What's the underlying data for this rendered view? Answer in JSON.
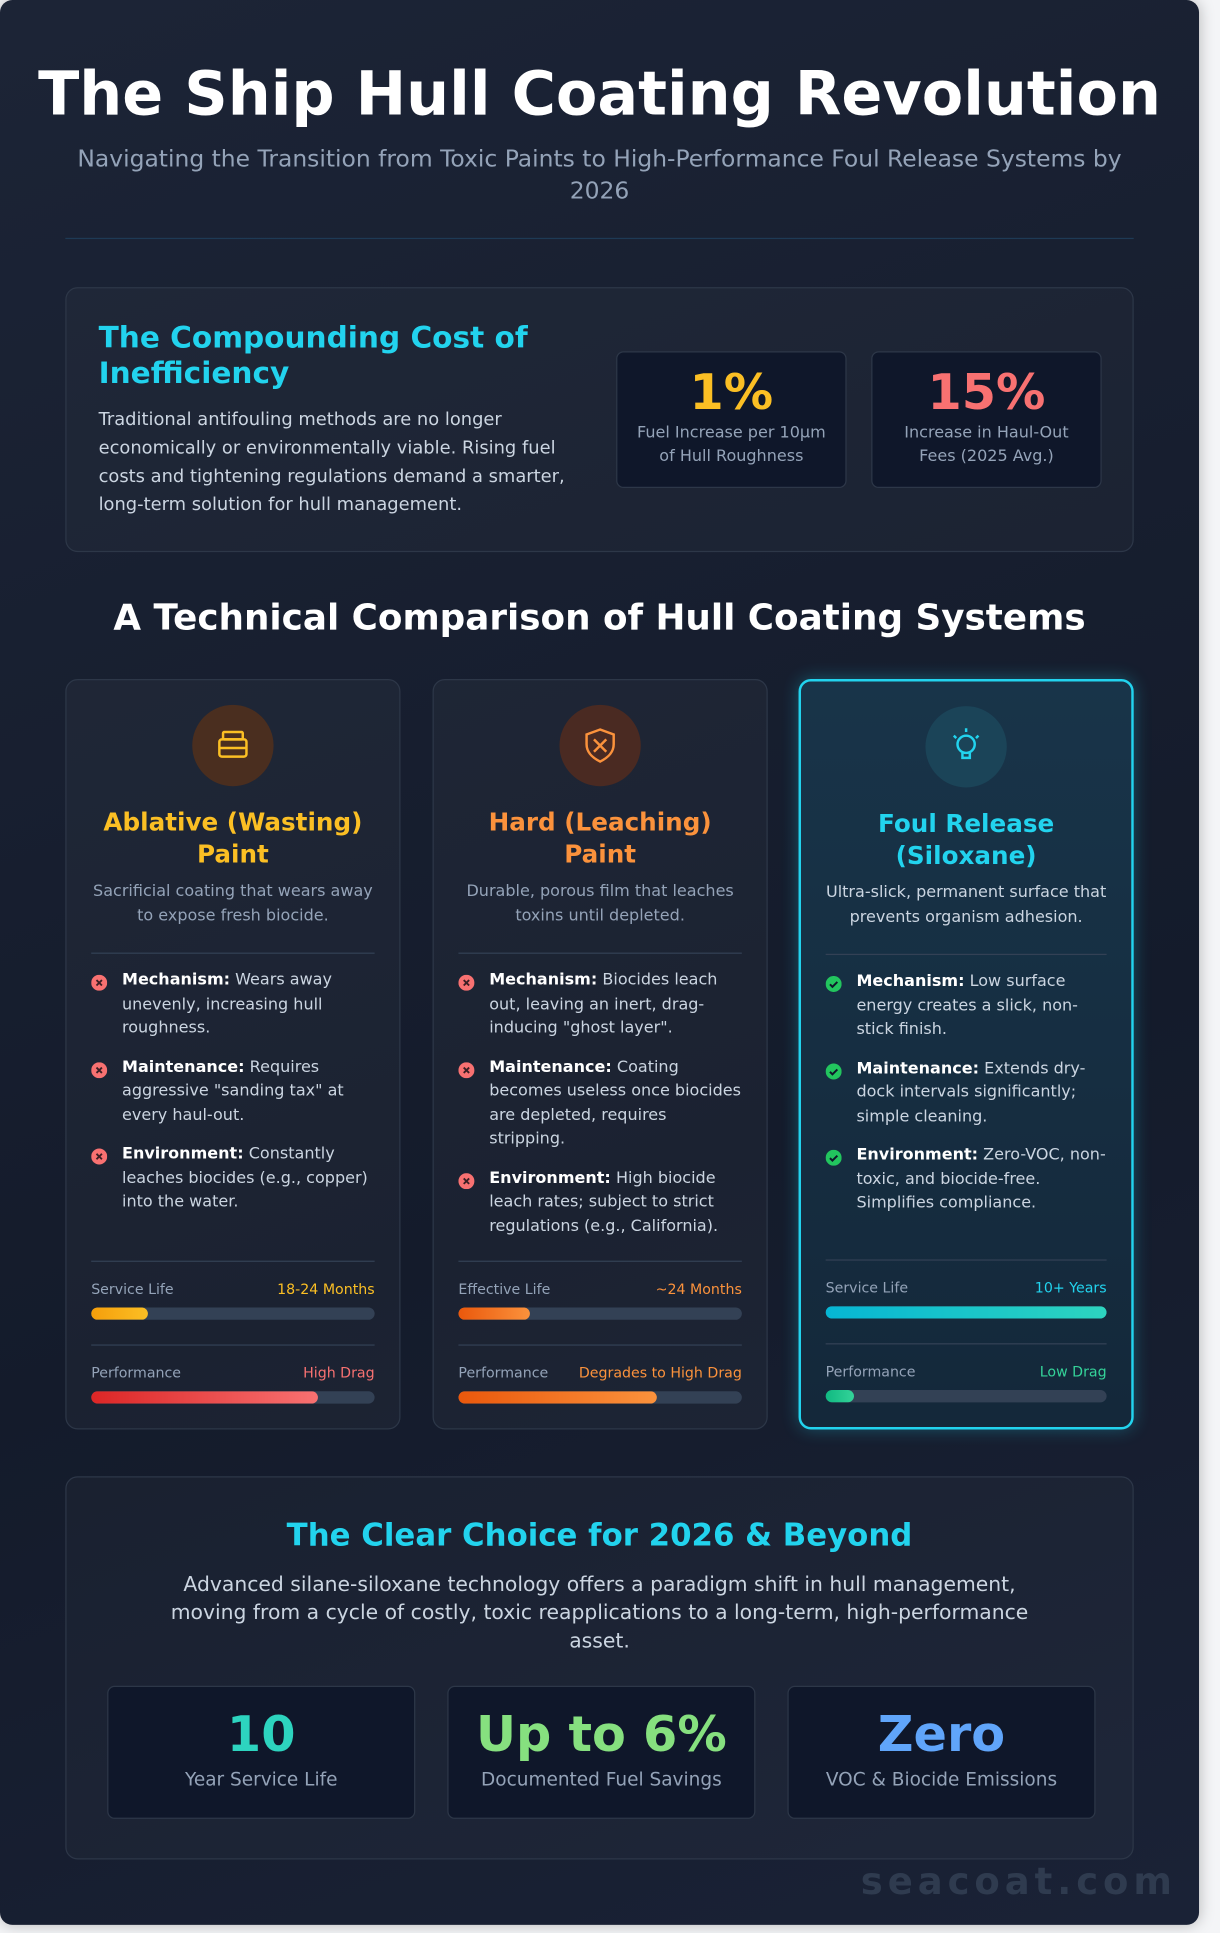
{
  "header": {
    "title": "The Ship Hull Coating Revolution",
    "subtitle": "Navigating the Transition from Toxic Paints to High-Performance Foul Release Systems by 2026"
  },
  "cost": {
    "title": "The Compounding Cost of Inefficiency",
    "body": "Traditional antifouling methods are no longer economically or environmentally viable. Rising fuel costs and tightening regulations demand a smarter, long-term solution for hull management.",
    "stats": [
      {
        "value": "1%",
        "label": "Fuel Increase per 10µm of Hull Roughness"
      },
      {
        "value": "15%",
        "label": "Increase in Haul-Out Fees (2025 Avg.)"
      }
    ]
  },
  "comparison": {
    "title": "A Technical Comparison of Hull Coating Systems",
    "cards": [
      {
        "title": "Ablative (Wasting) Paint",
        "description": "Sacrificial coating that wears away to expose fresh biocide.",
        "points": [
          {
            "term": "Mechanism:",
            "text": "Wears away unevenly, increasing hull roughness."
          },
          {
            "term": "Maintenance:",
            "text": "Requires aggressive \"sanding tax\" at every haul-out."
          },
          {
            "term": "Environment:",
            "text": "Constantly leaches biocides (e.g., copper) into the water."
          }
        ],
        "bars": [
          {
            "label": "Service Life",
            "value": "18-24 Months",
            "fill": 20
          },
          {
            "label": "Performance",
            "value": "High Drag",
            "fill": 80
          }
        ]
      },
      {
        "title": "Hard (Leaching) Paint",
        "description": "Durable, porous film that leaches toxins until depleted.",
        "points": [
          {
            "term": "Mechanism:",
            "text": "Biocides leach out, leaving an inert, drag-inducing \"ghost layer\"."
          },
          {
            "term": "Maintenance:",
            "text": "Coating becomes useless once biocides are depleted, requires stripping."
          },
          {
            "term": "Environment:",
            "text": "High biocide leach rates; subject to strict regulations (e.g., California)."
          }
        ],
        "bars": [
          {
            "label": "Effective Life",
            "value": "~24 Months",
            "fill": 25
          },
          {
            "label": "Performance",
            "value": "Degrades to High Drag",
            "fill": 70
          }
        ]
      },
      {
        "title": "Foul Release (Siloxane)",
        "description": "Ultra-slick, permanent surface that prevents organism adhesion.",
        "points": [
          {
            "term": "Mechanism:",
            "text": "Low surface energy creates a slick, non-stick finish."
          },
          {
            "term": "Maintenance:",
            "text": "Extends dry-dock intervals significantly; simple cleaning."
          },
          {
            "term": "Environment:",
            "text": "Zero-VOC, non-toxic, and biocide-free. Simplifies compliance."
          }
        ],
        "bars": [
          {
            "label": "Service Life",
            "value": "10+ Years",
            "fill": 100
          },
          {
            "label": "Performance",
            "value": "Low Drag",
            "fill": 10
          }
        ]
      }
    ]
  },
  "conclusion": {
    "title": "The Clear Choice for 2026 & Beyond",
    "body": "Advanced silane-siloxane technology offers a paradigm shift in hull management, moving from a cycle of costly, toxic reapplications to a long-term, high-performance asset.",
    "stats": [
      {
        "value": "10",
        "label": "Year Service Life"
      },
      {
        "value": "Up to 6%",
        "label": "Documented Fuel Savings"
      },
      {
        "value": "Zero",
        "label": "VOC & Biocide Emissions"
      }
    ]
  },
  "footer": {
    "watermark": "seacoat.com"
  }
}
